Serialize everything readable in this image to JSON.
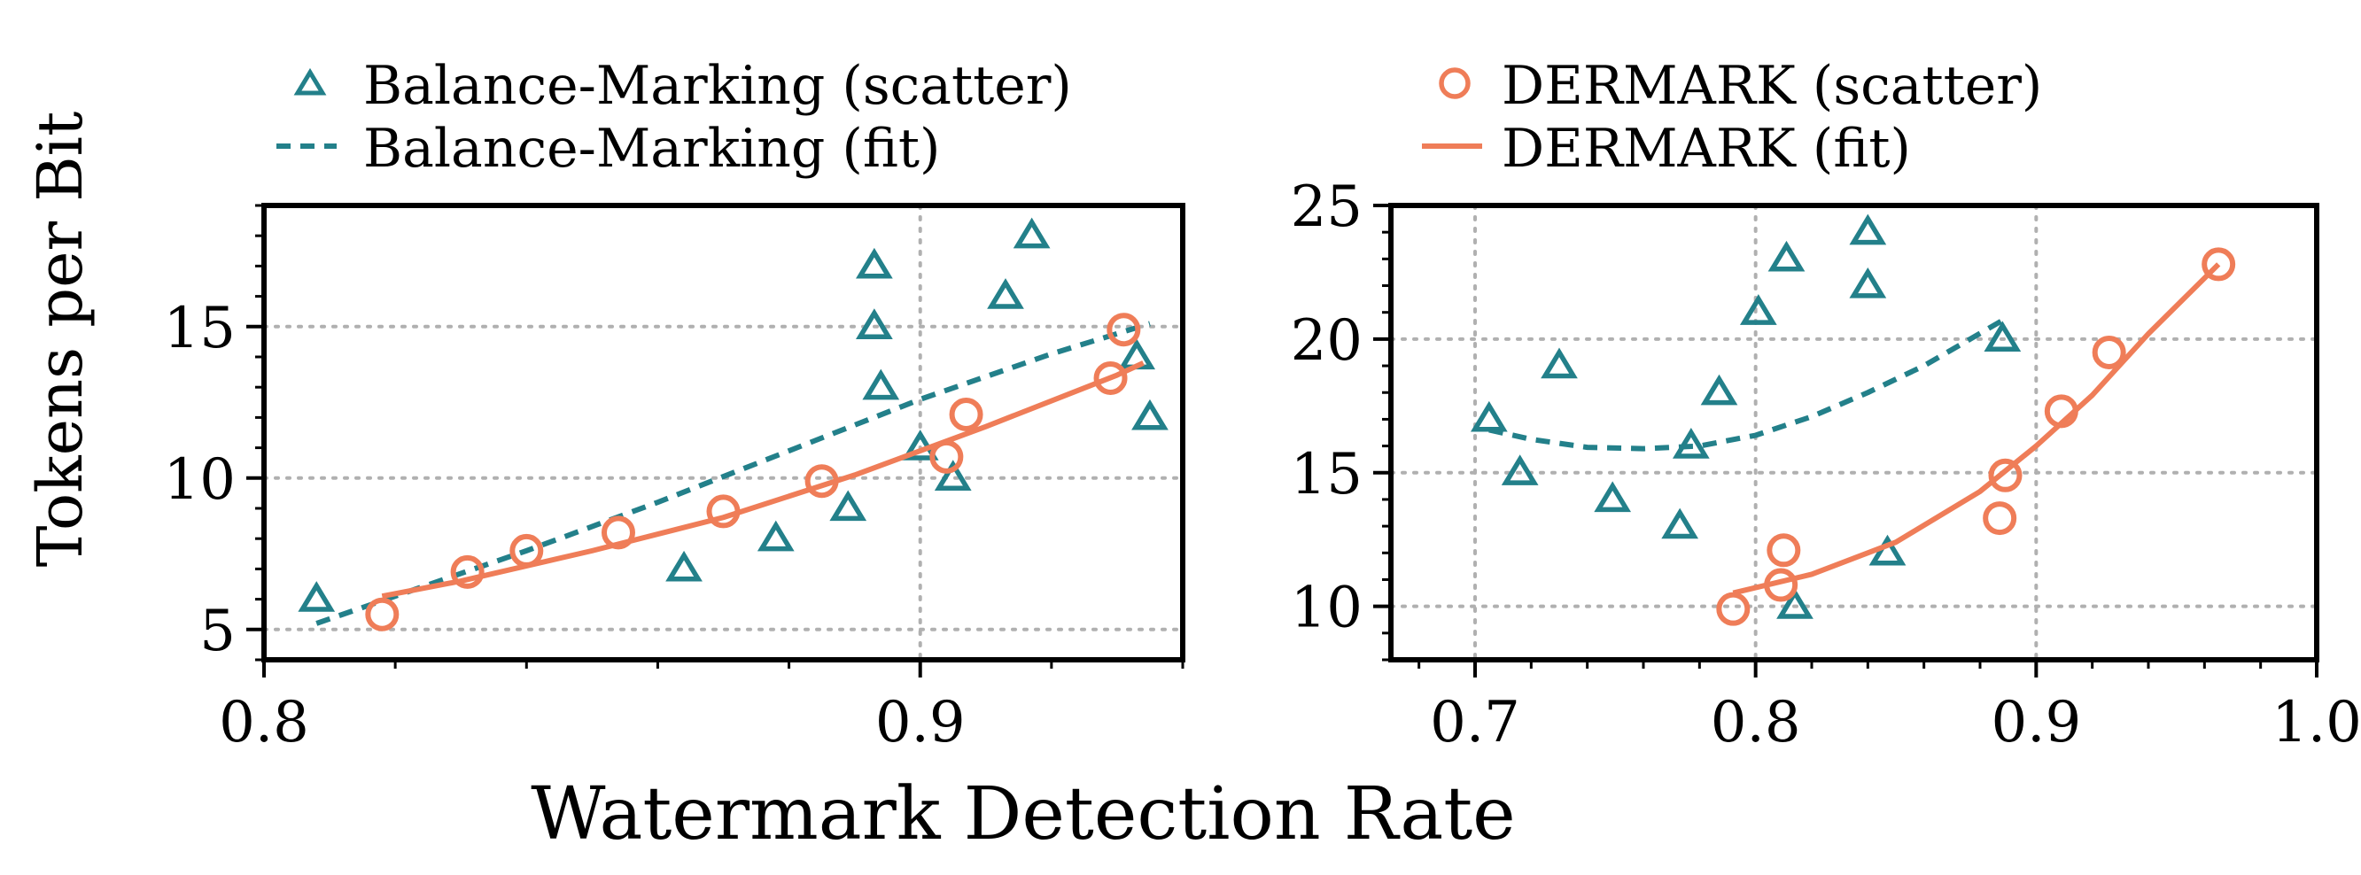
{
  "figure": {
    "xlabel": "Watermark Detection Rate",
    "ylabel": "Tokens per Bit"
  },
  "colors": {
    "balance": "#23808a",
    "dermark": "#ef7d58",
    "grid": "#b0b0b0",
    "axis": "#000000"
  },
  "chart_data": [
    {
      "type": "scatter",
      "title": "",
      "xlabel": "",
      "ylabel": "",
      "xlim": [
        0.8,
        0.94
      ],
      "ylim": [
        4,
        19
      ],
      "xticks": [
        0.8,
        0.9
      ],
      "xtick_labels": [
        "0.8",
        "0.9"
      ],
      "yticks": [
        5,
        10,
        15
      ],
      "ytick_labels": [
        "5",
        "10",
        "15"
      ],
      "grid": true,
      "legend": {
        "placement": "top",
        "entries": [
          {
            "label": "Balance-Marking (scatter)",
            "marker": "triangle",
            "color": "balance"
          },
          {
            "label": "Balance-Marking (fit)",
            "marker": "dashed-line",
            "color": "balance"
          }
        ]
      },
      "series": [
        {
          "name": "Balance-Marking (scatter)",
          "kind": "scatter",
          "marker": "triangle",
          "color": "balance",
          "x": [
            0.808,
            0.864,
            0.878,
            0.889,
            0.893,
            0.893,
            0.894,
            0.9,
            0.905,
            0.913,
            0.917,
            0.933,
            0.935
          ],
          "y": [
            6,
            7,
            8,
            9,
            15,
            17,
            13,
            11,
            10,
            16,
            18,
            14,
            12
          ]
        },
        {
          "name": "Balance-Marking (fit)",
          "kind": "line",
          "style": "dashed",
          "color": "balance",
          "x": [
            0.808,
            0.82,
            0.84,
            0.86,
            0.88,
            0.9,
            0.92,
            0.935
          ],
          "y": [
            5.2,
            6.1,
            7.6,
            9.2,
            10.9,
            12.6,
            14.1,
            15.1
          ]
        },
        {
          "name": "DERMARK (fit)",
          "kind": "line",
          "style": "solid",
          "color": "dermark",
          "x": [
            0.818,
            0.83,
            0.85,
            0.87,
            0.89,
            0.91,
            0.93,
            0.934
          ],
          "y": [
            6.1,
            6.6,
            7.6,
            8.7,
            10.1,
            11.7,
            13.4,
            13.8
          ]
        },
        {
          "name": "DERMARK (scatter)",
          "kind": "scatter",
          "marker": "circle",
          "color": "dermark",
          "x": [
            0.818,
            0.831,
            0.84,
            0.854,
            0.87,
            0.885,
            0.904,
            0.907,
            0.929,
            0.931
          ],
          "y": [
            5.5,
            6.9,
            7.6,
            8.2,
            8.9,
            9.9,
            10.7,
            12.1,
            13.3,
            14.9
          ]
        }
      ]
    },
    {
      "type": "scatter",
      "title": "",
      "xlabel": "",
      "ylabel": "",
      "xlim": [
        0.67,
        1.0
      ],
      "ylim": [
        8,
        25
      ],
      "xticks": [
        0.7,
        0.8,
        0.9,
        1.0
      ],
      "xtick_labels": [
        "0.7",
        "0.8",
        "0.9",
        "1.0"
      ],
      "yticks": [
        10,
        15,
        20,
        25
      ],
      "ytick_labels": [
        "10",
        "15",
        "20",
        "25"
      ],
      "grid": true,
      "legend": {
        "placement": "top",
        "entries": [
          {
            "label": "DERMARK (scatter)",
            "marker": "circle",
            "color": "dermark"
          },
          {
            "label": "DERMARK (fit)",
            "marker": "solid-line",
            "color": "dermark"
          }
        ]
      },
      "series": [
        {
          "name": "Balance-Marking (scatter)",
          "kind": "scatter",
          "marker": "triangle",
          "color": "balance",
          "x": [
            0.705,
            0.716,
            0.73,
            0.749,
            0.773,
            0.777,
            0.787,
            0.801,
            0.811,
            0.814,
            0.84,
            0.84,
            0.847,
            0.888
          ],
          "y": [
            17,
            15,
            19,
            14,
            13,
            16,
            18,
            21,
            23,
            10,
            24,
            22,
            12,
            20
          ]
        },
        {
          "name": "Balance-Marking (fit)",
          "kind": "line",
          "style": "dashed",
          "color": "balance",
          "x": [
            0.705,
            0.72,
            0.74,
            0.76,
            0.78,
            0.8,
            0.82,
            0.84,
            0.86,
            0.888
          ],
          "y": [
            16.6,
            16.25,
            15.95,
            15.9,
            16.0,
            16.4,
            17.1,
            18.0,
            19.0,
            20.7
          ]
        },
        {
          "name": "DERMARK (fit)",
          "kind": "line",
          "style": "solid",
          "color": "dermark",
          "x": [
            0.792,
            0.82,
            0.85,
            0.88,
            0.9,
            0.92,
            0.94,
            0.965
          ],
          "y": [
            10.5,
            11.2,
            12.4,
            14.3,
            16.0,
            17.9,
            20.2,
            22.8
          ]
        },
        {
          "name": "DERMARK (scatter)",
          "kind": "scatter",
          "marker": "circle",
          "color": "dermark",
          "x": [
            0.792,
            0.809,
            0.81,
            0.887,
            0.889,
            0.909,
            0.926,
            0.965
          ],
          "y": [
            9.9,
            10.8,
            12.1,
            13.3,
            14.9,
            17.3,
            19.5,
            22.8
          ]
        }
      ]
    }
  ]
}
